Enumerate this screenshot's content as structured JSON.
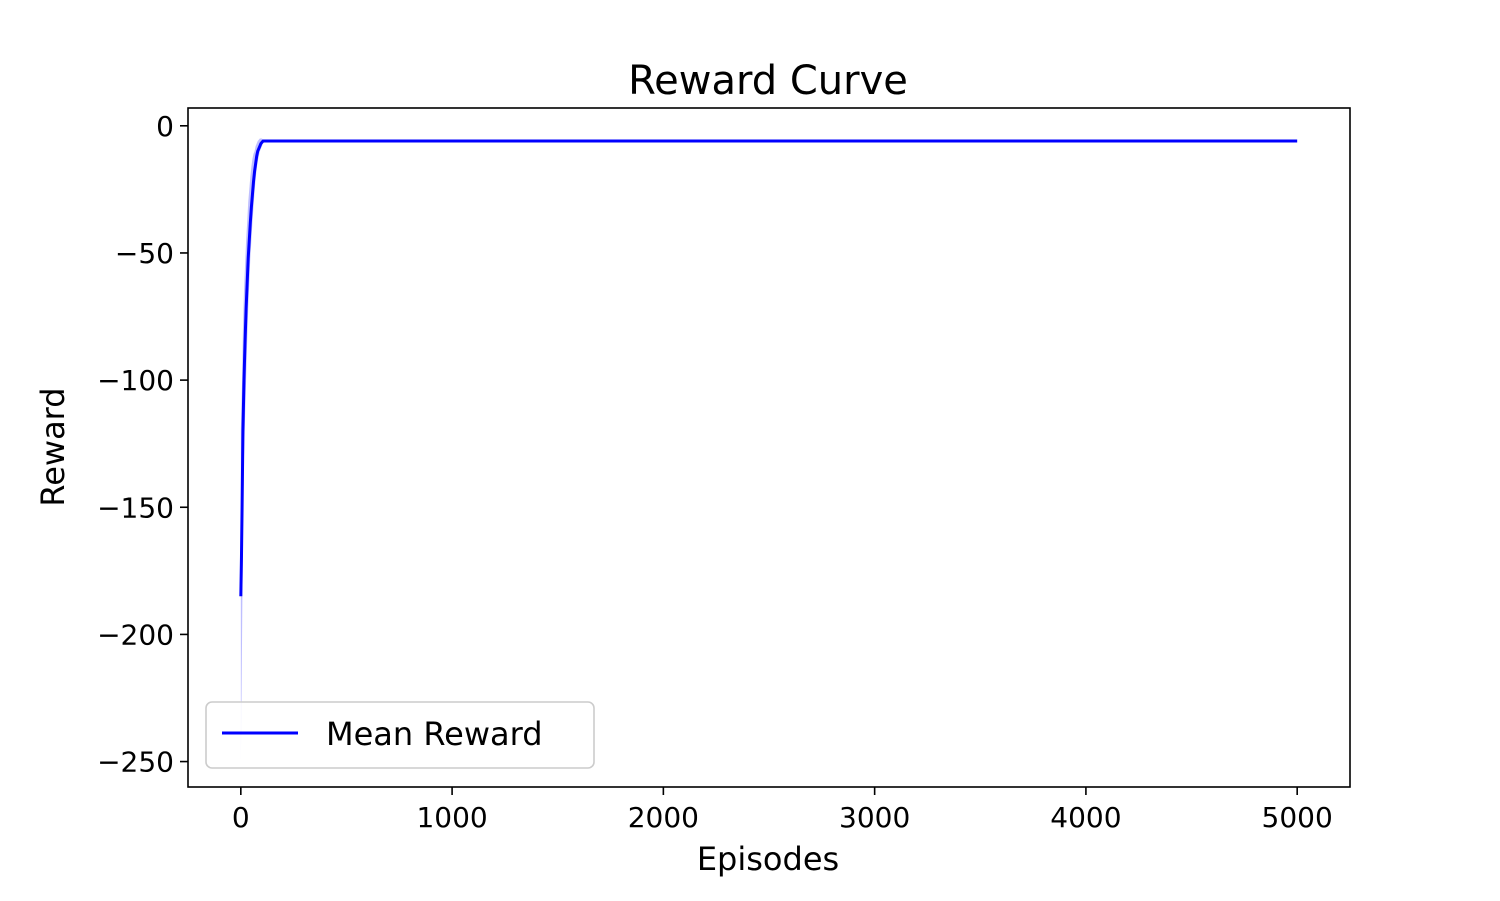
{
  "chart_data": {
    "type": "line",
    "title": "Reward Curve",
    "xlabel": "Episodes",
    "ylabel": "Reward",
    "xlim": [
      -250,
      5250
    ],
    "ylim": [
      -260,
      7
    ],
    "xticks": [
      0,
      1000,
      2000,
      3000,
      4000,
      5000
    ],
    "xtick_labels": [
      "0",
      "1000",
      "2000",
      "3000",
      "4000",
      "5000"
    ],
    "yticks": [
      0,
      -50,
      -100,
      -150,
      -200,
      -250
    ],
    "ytick_labels": [
      "0",
      "−50",
      "−100",
      "−150",
      "−200",
      "−250"
    ],
    "grid": false,
    "legend_position": "lower-left",
    "series": [
      {
        "name": "Mean Reward",
        "color": "#0000ff",
        "x": [
          0,
          3,
          6,
          10,
          15,
          20,
          25,
          30,
          35,
          40,
          45,
          50,
          55,
          60,
          65,
          70,
          75,
          80,
          85,
          90,
          95,
          100,
          105,
          110,
          120,
          200,
          500,
          1000,
          2000,
          3000,
          4000,
          5000
        ],
        "y": [
          -185,
          -170,
          -150,
          -120,
          -100,
          -85,
          -72,
          -62,
          -52,
          -45,
          -38,
          -32,
          -27,
          -22,
          -18,
          -15,
          -12,
          -10,
          -9,
          -8,
          -7,
          -6.5,
          -6,
          -6,
          -6,
          -6,
          -6,
          -6,
          -6,
          -6,
          -6,
          -6
        ],
        "band_upper": [
          -120,
          -110,
          -100,
          -80,
          -65,
          -55,
          -45,
          -38,
          -30,
          -25,
          -20,
          -16,
          -13,
          -11,
          -10,
          -8,
          -7,
          -6,
          -5.5,
          -5,
          -5,
          -5,
          -5.5,
          -6,
          -6,
          -6,
          -6,
          -6,
          -6,
          -6,
          -6,
          -6
        ],
        "band_lower": [
          -250,
          -230,
          -200,
          -160,
          -130,
          -115,
          -100,
          -85,
          -72,
          -62,
          -52,
          -45,
          -38,
          -32,
          -26,
          -21,
          -17,
          -14,
          -12,
          -10,
          -9,
          -8,
          -7,
          -6.5,
          -6,
          -6,
          -6,
          -6,
          -6,
          -6,
          -6,
          -6
        ]
      }
    ]
  }
}
